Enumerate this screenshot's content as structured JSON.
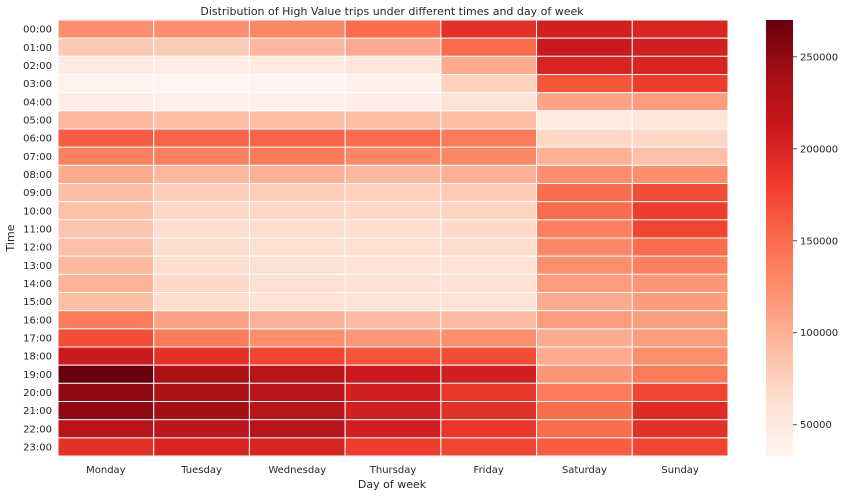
{
  "chart_data": {
    "type": "heatmap",
    "title": "Distribution of High Value trips under different times and day of week",
    "xlabel": "Day of week",
    "ylabel": "Time",
    "x_categories": [
      "Monday",
      "Tuesday",
      "Wednesday",
      "Thursday",
      "Friday",
      "Saturday",
      "Sunday"
    ],
    "y_categories": [
      "00:00",
      "01:00",
      "02:00",
      "03:00",
      "04:00",
      "05:00",
      "06:00",
      "07:00",
      "08:00",
      "09:00",
      "10:00",
      "11:00",
      "12:00",
      "13:00",
      "14:00",
      "15:00",
      "16:00",
      "17:00",
      "18:00",
      "19:00",
      "20:00",
      "21:00",
      "22:00",
      "23:00"
    ],
    "values": [
      [
        125000,
        125000,
        130000,
        150000,
        190000,
        205000,
        200000
      ],
      [
        82000,
        80000,
        95000,
        105000,
        150000,
        210000,
        205000
      ],
      [
        48000,
        45000,
        48000,
        55000,
        105000,
        200000,
        200000
      ],
      [
        37000,
        35000,
        36000,
        40000,
        75000,
        165000,
        180000
      ],
      [
        45000,
        40000,
        42000,
        45000,
        60000,
        110000,
        115000
      ],
      [
        95000,
        90000,
        90000,
        90000,
        90000,
        48000,
        55000
      ],
      [
        160000,
        155000,
        155000,
        150000,
        140000,
        70000,
        70000
      ],
      [
        135000,
        135000,
        140000,
        130000,
        130000,
        100000,
        88000
      ],
      [
        105000,
        95000,
        100000,
        95000,
        100000,
        125000,
        125000
      ],
      [
        90000,
        78000,
        78000,
        75000,
        80000,
        150000,
        170000
      ],
      [
        88000,
        70000,
        70000,
        68000,
        72000,
        150000,
        180000
      ],
      [
        85000,
        65000,
        65000,
        65000,
        68000,
        135000,
        175000
      ],
      [
        88000,
        65000,
        62000,
        62000,
        65000,
        130000,
        150000
      ],
      [
        95000,
        65000,
        62000,
        60000,
        60000,
        125000,
        135000
      ],
      [
        98000,
        68000,
        62000,
        60000,
        60000,
        115000,
        120000
      ],
      [
        90000,
        65000,
        60000,
        58000,
        60000,
        105000,
        115000
      ],
      [
        140000,
        110000,
        100000,
        92000,
        92000,
        115000,
        115000
      ],
      [
        170000,
        140000,
        125000,
        118000,
        125000,
        105000,
        115000
      ],
      [
        210000,
        190000,
        175000,
        165000,
        170000,
        105000,
        125000
      ],
      [
        270000,
        235000,
        225000,
        210000,
        205000,
        120000,
        140000
      ],
      [
        250000,
        235000,
        225000,
        205000,
        185000,
        140000,
        175000
      ],
      [
        250000,
        240000,
        225000,
        205000,
        190000,
        150000,
        195000
      ],
      [
        225000,
        220000,
        225000,
        205000,
        185000,
        150000,
        190000
      ],
      [
        190000,
        200000,
        200000,
        180000,
        175000,
        160000,
        175000
      ]
    ],
    "vmin": 33000,
    "vmax": 270000,
    "colormap": "Reds",
    "colorbar_ticks": [
      50000,
      100000,
      150000,
      200000,
      250000
    ],
    "colorbar_tick_labels": [
      "50000",
      "100000",
      "150000",
      "200000",
      "250000"
    ],
    "grid": true,
    "cell_border_color": "#ffffff"
  }
}
